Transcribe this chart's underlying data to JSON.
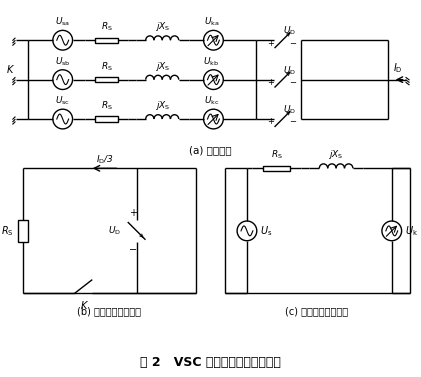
{
  "title": "图 2   VSC 换流器交流侧等效电路",
  "subtitle_a": "(a) 等效电路",
  "subtitle_b": "(b) 直流回路等效电路",
  "subtitle_c": "(c) 交流回路等效电路",
  "bg_color": "#ffffff",
  "line_color": "#000000",
  "figsize": [
    4.21,
    3.77
  ],
  "dpi": 100
}
